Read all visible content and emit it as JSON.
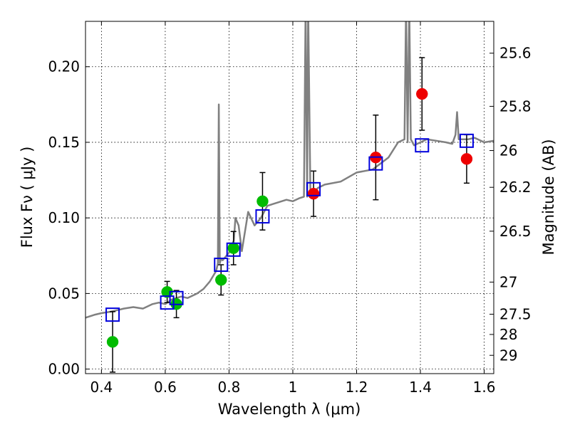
{
  "chart_data": {
    "type": "scatter",
    "title": "",
    "xlabel": "Wavelength  λ (μm)",
    "ylabel": "Flux  Fν  ( μJy )",
    "y2label": "Magnitude (AB)",
    "xlim": [
      0.35,
      1.63
    ],
    "ylim": [
      -0.003,
      0.23
    ],
    "grid": true,
    "x_ticks": [
      {
        "value": 0.4,
        "label": "0.4"
      },
      {
        "value": 0.6,
        "label": "0.6"
      },
      {
        "value": 0.8,
        "label": "0.8"
      },
      {
        "value": 1.0,
        "label": "1"
      },
      {
        "value": 1.2,
        "label": "1.2"
      },
      {
        "value": 1.4,
        "label": "1.4"
      },
      {
        "value": 1.6,
        "label": "1.6"
      }
    ],
    "y_ticks": [
      {
        "value": 0.0,
        "label": "0.00"
      },
      {
        "value": 0.05,
        "label": "0.05"
      },
      {
        "value": 0.1,
        "label": "0.10"
      },
      {
        "value": 0.15,
        "label": "0.15"
      },
      {
        "value": 0.2,
        "label": "0.20"
      }
    ],
    "y2_ticks": [
      {
        "value": 25.6,
        "label": "25.6"
      },
      {
        "value": 25.8,
        "label": "25.8"
      },
      {
        "value": 26.0,
        "label": "26"
      },
      {
        "value": 26.2,
        "label": "26.2"
      },
      {
        "value": 26.5,
        "label": "26.5"
      },
      {
        "value": 27.0,
        "label": "27"
      },
      {
        "value": 27.5,
        "label": "27.5"
      },
      {
        "value": 28.0,
        "label": "28"
      },
      {
        "value": 29.0,
        "label": "29"
      }
    ],
    "colors": {
      "hst": "#00bb00",
      "ir": "#ee0000",
      "model": "#0000dd",
      "spectrum": "#808080",
      "grid": "#000000"
    },
    "series": [
      {
        "name": "green points",
        "marker": "circle",
        "color": "#00bb00",
        "points": [
          {
            "x": 0.435,
            "y": 0.018,
            "err": 0.02
          },
          {
            "x": 0.606,
            "y": 0.051,
            "err": 0.007
          },
          {
            "x": 0.635,
            "y": 0.043,
            "err": 0.009
          },
          {
            "x": 0.775,
            "y": 0.059,
            "err": 0.01
          },
          {
            "x": 0.814,
            "y": 0.08,
            "err": 0.011
          },
          {
            "x": 0.905,
            "y": 0.111,
            "err": 0.019
          }
        ]
      },
      {
        "name": "red points",
        "marker": "circle",
        "color": "#ee0000",
        "points": [
          {
            "x": 1.065,
            "y": 0.116,
            "err": 0.015
          },
          {
            "x": 1.26,
            "y": 0.14,
            "err": 0.028
          },
          {
            "x": 1.405,
            "y": 0.182,
            "err": 0.024
          },
          {
            "x": 1.545,
            "y": 0.139,
            "err": 0.016
          }
        ]
      },
      {
        "name": "model photometry",
        "marker": "square",
        "color": "#0000dd",
        "points": [
          {
            "x": 0.435,
            "y": 0.036
          },
          {
            "x": 0.606,
            "y": 0.044
          },
          {
            "x": 0.635,
            "y": 0.047
          },
          {
            "x": 0.775,
            "y": 0.069
          },
          {
            "x": 0.814,
            "y": 0.079
          },
          {
            "x": 0.905,
            "y": 0.101
          },
          {
            "x": 1.065,
            "y": 0.119
          },
          {
            "x": 1.26,
            "y": 0.136
          },
          {
            "x": 1.405,
            "y": 0.148
          },
          {
            "x": 1.545,
            "y": 0.151
          }
        ]
      }
    ],
    "spectrum": {
      "name": "model spectrum",
      "color": "#808080",
      "x": [
        0.35,
        0.38,
        0.4,
        0.43,
        0.45,
        0.47,
        0.5,
        0.53,
        0.56,
        0.58,
        0.6,
        0.62,
        0.65,
        0.67,
        0.7,
        0.72,
        0.74,
        0.76,
        0.765,
        0.768,
        0.771,
        0.775,
        0.78,
        0.8,
        0.815,
        0.82,
        0.83,
        0.84,
        0.86,
        0.88,
        0.9,
        0.92,
        0.95,
        0.98,
        1.0,
        1.02,
        1.035,
        1.04,
        1.045,
        1.048,
        1.055,
        1.06,
        1.08,
        1.1,
        1.15,
        1.2,
        1.25,
        1.3,
        1.33,
        1.35,
        1.355,
        1.36,
        1.365,
        1.37,
        1.38,
        1.4,
        1.42,
        1.45,
        1.48,
        1.5,
        1.51,
        1.515,
        1.52,
        1.55,
        1.57,
        1.6,
        1.63
      ],
      "y": [
        0.034,
        0.036,
        0.037,
        0.038,
        0.039,
        0.04,
        0.041,
        0.04,
        0.043,
        0.044,
        0.043,
        0.046,
        0.048,
        0.047,
        0.05,
        0.053,
        0.058,
        0.065,
        0.07,
        0.175,
        0.07,
        0.073,
        0.072,
        0.077,
        0.085,
        0.1,
        0.095,
        0.078,
        0.104,
        0.095,
        0.1,
        0.108,
        0.11,
        0.112,
        0.111,
        0.113,
        0.114,
        0.24,
        0.114,
        0.24,
        0.118,
        0.116,
        0.12,
        0.122,
        0.124,
        0.13,
        0.132,
        0.14,
        0.15,
        0.152,
        0.24,
        0.15,
        0.24,
        0.152,
        0.148,
        0.15,
        0.152,
        0.151,
        0.15,
        0.149,
        0.155,
        0.17,
        0.152,
        0.152,
        0.153,
        0.15,
        0.151
      ]
    }
  }
}
